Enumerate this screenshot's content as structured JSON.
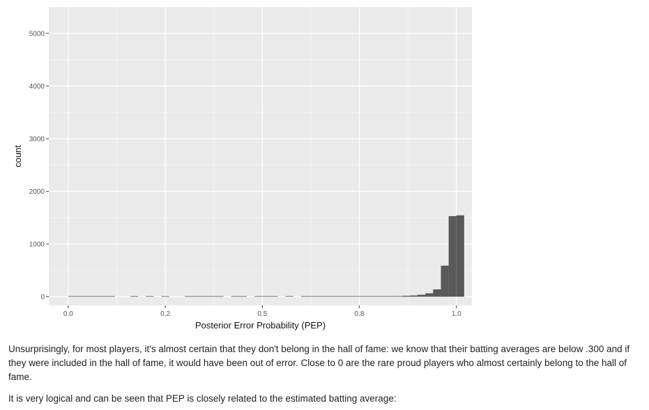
{
  "chart_data": {
    "type": "bar",
    "title": "",
    "xlabel": "Posterior Error Probability (PEP)",
    "ylabel": "count",
    "xlim": [
      -0.05,
      1.04
    ],
    "ylim": [
      -165,
      5500
    ],
    "x_ticks": [
      {
        "value": 0.0,
        "label": "0.0"
      },
      {
        "value": 0.25,
        "label": "0.2"
      },
      {
        "value": 0.5,
        "label": "0.5"
      },
      {
        "value": 0.75,
        "label": "0.8"
      },
      {
        "value": 1.0,
        "label": "1.0"
      }
    ],
    "y_ticks": [
      {
        "value": 0,
        "label": "0"
      },
      {
        "value": 1000,
        "label": "1000"
      },
      {
        "value": 2000,
        "label": "2000"
      },
      {
        "value": 3000,
        "label": "3000"
      },
      {
        "value": 4000,
        "label": "4000"
      },
      {
        "value": 5000,
        "label": "5000"
      }
    ],
    "grid": true,
    "bar_color": "#595959",
    "panel_background": "#ebebeb",
    "bin_width": 0.02,
    "bins": [
      {
        "x": 0.01,
        "count": 1
      },
      {
        "x": 0.03,
        "count": 3
      },
      {
        "x": 0.05,
        "count": 1
      },
      {
        "x": 0.07,
        "count": 1
      },
      {
        "x": 0.09,
        "count": 1
      },
      {
        "x": 0.11,
        "count": 1
      },
      {
        "x": 0.17,
        "count": 1
      },
      {
        "x": 0.21,
        "count": 1
      },
      {
        "x": 0.25,
        "count": 1
      },
      {
        "x": 0.31,
        "count": 1
      },
      {
        "x": 0.33,
        "count": 1
      },
      {
        "x": 0.35,
        "count": 1
      },
      {
        "x": 0.37,
        "count": 1
      },
      {
        "x": 0.39,
        "count": 1
      },
      {
        "x": 0.43,
        "count": 1
      },
      {
        "x": 0.45,
        "count": 1
      },
      {
        "x": 0.49,
        "count": 1
      },
      {
        "x": 0.51,
        "count": 1
      },
      {
        "x": 0.53,
        "count": 1
      },
      {
        "x": 0.57,
        "count": 1
      },
      {
        "x": 0.61,
        "count": 1
      },
      {
        "x": 0.63,
        "count": 1
      },
      {
        "x": 0.65,
        "count": 1
      },
      {
        "x": 0.67,
        "count": 1
      },
      {
        "x": 0.69,
        "count": 1
      },
      {
        "x": 0.71,
        "count": 1
      },
      {
        "x": 0.73,
        "count": 2
      },
      {
        "x": 0.75,
        "count": 4
      },
      {
        "x": 0.77,
        "count": 3
      },
      {
        "x": 0.79,
        "count": 5
      },
      {
        "x": 0.81,
        "count": 6
      },
      {
        "x": 0.83,
        "count": 8
      },
      {
        "x": 0.85,
        "count": 12
      },
      {
        "x": 0.87,
        "count": 18
      },
      {
        "x": 0.89,
        "count": 24
      },
      {
        "x": 0.91,
        "count": 38
      },
      {
        "x": 0.93,
        "count": 65
      },
      {
        "x": 0.95,
        "count": 140
      },
      {
        "x": 0.97,
        "count": 590
      },
      {
        "x": 0.99,
        "count": 1530
      },
      {
        "x": 1.01,
        "count": 1545
      }
    ]
  },
  "text": {
    "paragraph1": "Unsurprisingly, for most players, it's almost certain that they don't belong in the hall of fame: we know that their batting averages are below .300 and if they were included in the hall of fame, it would have been out of error. Close to 0 are the rare proud players who almost certainly belong to the hall of fame.",
    "paragraph2": "It is very logical and can be seen that PEP is closely related to the estimated batting average:"
  }
}
